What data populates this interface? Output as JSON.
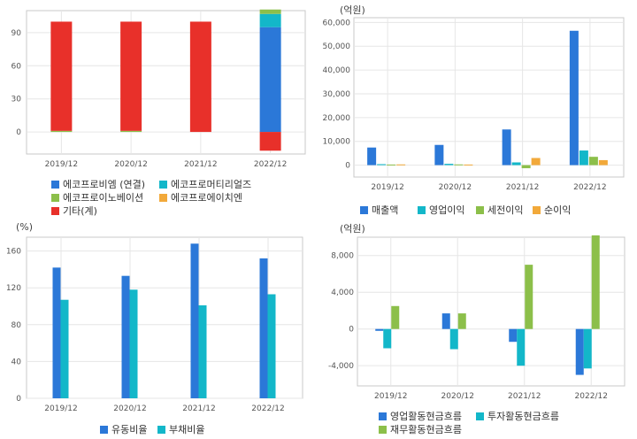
{
  "colors": {
    "blue": "#2b78d8",
    "cyan": "#13b7c9",
    "green": "#8cbf4a",
    "orange": "#f2a93a",
    "red": "#e8302a",
    "grid": "#e6e6e6",
    "axis": "#c8c8c8"
  },
  "chart_data": [
    {
      "type": "bar",
      "stacked": true,
      "unit": "",
      "categories": [
        "2019/12",
        "2020/12",
        "2021/12",
        "2022/12"
      ],
      "ylim": [
        -20,
        110
      ],
      "yticks": [
        0,
        30,
        60,
        90
      ],
      "series": [
        {
          "name": "에코프로비엠 (연결)",
          "color": "blue",
          "values": [
            0,
            0,
            0,
            95
          ]
        },
        {
          "name": "에코프로머티리얼즈",
          "color": "cyan",
          "values": [
            0,
            0,
            0,
            12
          ]
        },
        {
          "name": "에코프로이노베이션",
          "color": "green",
          "values": [
            1,
            1,
            0,
            4
          ]
        },
        {
          "name": "에코프로에이치엔",
          "color": "orange",
          "values": [
            0,
            0,
            0,
            0
          ]
        },
        {
          "name": "기타(계)",
          "color": "red",
          "values": [
            99,
            99,
            100,
            -17
          ]
        }
      ]
    },
    {
      "type": "bar",
      "unit": "(억원)",
      "categories": [
        "2019/12",
        "2020/12",
        "2021/12",
        "2022/12"
      ],
      "ylim": [
        -5000,
        62000
      ],
      "yticks": [
        0,
        10000,
        20000,
        30000,
        40000,
        50000,
        60000
      ],
      "ytick_labels": [
        "0",
        "10,000",
        "20,000",
        "30,000",
        "40,000",
        "50,000",
        "60,000"
      ],
      "series": [
        {
          "name": "매출액",
          "color": "blue",
          "values": [
            7400,
            8500,
            15000,
            56500
          ]
        },
        {
          "name": "영업이익",
          "color": "cyan",
          "values": [
            400,
            550,
            1150,
            6150
          ]
        },
        {
          "name": "세전이익",
          "color": "green",
          "values": [
            250,
            300,
            -1300,
            3500
          ]
        },
        {
          "name": "순이익",
          "color": "orange",
          "values": [
            300,
            250,
            3000,
            2100
          ]
        }
      ]
    },
    {
      "type": "bar",
      "unit": "(%)",
      "categories": [
        "2019/12",
        "2020/12",
        "2021/12",
        "2022/12"
      ],
      "ylim": [
        0,
        175
      ],
      "yticks": [
        0,
        40,
        80,
        120,
        160
      ],
      "series": [
        {
          "name": "유동비율",
          "color": "blue",
          "values": [
            142,
            133,
            168,
            152
          ]
        },
        {
          "name": "부채비율",
          "color": "cyan",
          "values": [
            107,
            118,
            101,
            113
          ]
        }
      ]
    },
    {
      "type": "bar",
      "unit": "(억원)",
      "categories": [
        "2019/12",
        "2020/12",
        "2021/12",
        "2022/12"
      ],
      "ylim": [
        -6200,
        10000
      ],
      "yticks": [
        -4000,
        0,
        4000,
        8000
      ],
      "ytick_labels": [
        "-4,000",
        "0",
        "4,000",
        "8,000"
      ],
      "series": [
        {
          "name": "영업활동현금흐름",
          "color": "blue",
          "values": [
            -200,
            1700,
            -1400,
            -5000
          ]
        },
        {
          "name": "투자활동현금흐름",
          "color": "cyan",
          "values": [
            -2100,
            -2200,
            -4000,
            -4300
          ]
        },
        {
          "name": "재무활동현금흐름",
          "color": "green",
          "values": [
            2500,
            1700,
            7000,
            10200
          ]
        }
      ]
    }
  ]
}
